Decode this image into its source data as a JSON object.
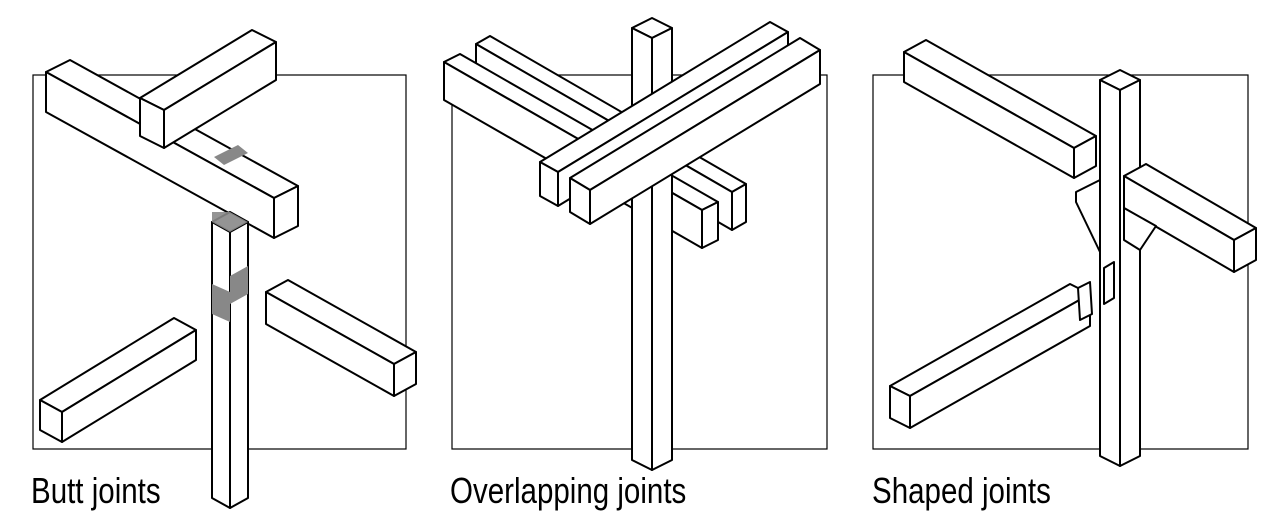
{
  "panels": [
    {
      "caption": "Butt joints"
    },
    {
      "caption": "Overlapping joints"
    },
    {
      "caption": "Shaped joints"
    }
  ],
  "colors": {
    "stroke": "#000000",
    "fill": "#ffffff",
    "highlight": "#888888"
  }
}
